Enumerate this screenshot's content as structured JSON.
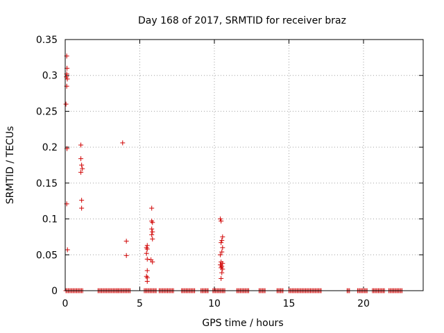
{
  "chart_data": {
    "type": "scatter",
    "title": "Day 168 of 2017, SRMTID for receiver braz",
    "xlabel": "GPS time / hours",
    "ylabel": "SRMTID / TECUs",
    "xlim": [
      0,
      24
    ],
    "ylim": [
      0,
      0.35
    ],
    "xticks": [
      0,
      5,
      10,
      15,
      20
    ],
    "xtick_labels": [
      "0",
      "5",
      "10",
      "15",
      "20"
    ],
    "yticks": [
      0,
      0.05,
      0.1,
      0.15,
      0.2,
      0.25,
      0.3,
      0.35
    ],
    "ytick_labels": [
      "0",
      "0.05",
      "0.1",
      "0.15",
      "0.2",
      "0.25",
      "0.3",
      "0.35"
    ],
    "grid": true,
    "marker": "+",
    "color": "#d00000",
    "series": [
      {
        "name": "SRMTID",
        "points": [
          [
            0.1,
            0.327
          ],
          [
            0.12,
            0.31
          ],
          [
            0.1,
            0.302
          ],
          [
            0.08,
            0.298
          ],
          [
            0.14,
            0.295
          ],
          [
            0.1,
            0.285
          ],
          [
            0.05,
            0.26
          ],
          [
            0.12,
            0.198
          ],
          [
            0.1,
            0.121
          ],
          [
            0.15,
            0.057
          ],
          [
            1.05,
            0.203
          ],
          [
            1.05,
            0.184
          ],
          [
            1.1,
            0.175
          ],
          [
            1.15,
            0.17
          ],
          [
            1.05,
            0.165
          ],
          [
            1.1,
            0.126
          ],
          [
            1.1,
            0.115
          ],
          [
            3.85,
            0.206
          ],
          [
            4.1,
            0.069
          ],
          [
            4.1,
            0.049
          ],
          [
            5.5,
            0.063
          ],
          [
            5.45,
            0.06
          ],
          [
            5.5,
            0.058
          ],
          [
            5.45,
            0.052
          ],
          [
            5.5,
            0.044
          ],
          [
            5.5,
            0.028
          ],
          [
            5.45,
            0.02
          ],
          [
            5.5,
            0.018
          ],
          [
            5.5,
            0.013
          ],
          [
            5.8,
            0.115
          ],
          [
            5.8,
            0.097
          ],
          [
            5.85,
            0.095
          ],
          [
            5.8,
            0.086
          ],
          [
            5.85,
            0.082
          ],
          [
            5.8,
            0.078
          ],
          [
            5.85,
            0.072
          ],
          [
            5.75,
            0.043
          ],
          [
            5.85,
            0.04
          ],
          [
            10.4,
            0.1
          ],
          [
            10.45,
            0.097
          ],
          [
            10.55,
            0.075
          ],
          [
            10.5,
            0.07
          ],
          [
            10.45,
            0.067
          ],
          [
            10.55,
            0.06
          ],
          [
            10.5,
            0.054
          ],
          [
            10.4,
            0.05
          ],
          [
            10.45,
            0.04
          ],
          [
            10.55,
            0.038
          ],
          [
            10.4,
            0.036
          ],
          [
            10.5,
            0.034
          ],
          [
            10.45,
            0.032
          ],
          [
            10.55,
            0.03
          ],
          [
            10.5,
            0.025
          ],
          [
            10.45,
            0.017
          ]
        ],
        "zero_ranges": [
          [
            0.05,
            1.2
          ],
          [
            2.2,
            3.5
          ],
          [
            3.55,
            4.35
          ],
          [
            5.3,
            6.1
          ],
          [
            6.3,
            7.3
          ],
          [
            7.8,
            8.7
          ],
          [
            9.1,
            9.6
          ],
          [
            9.9,
            10.7
          ],
          [
            11.5,
            12.3
          ],
          [
            13.0,
            13.4
          ],
          [
            14.2,
            14.6
          ],
          [
            15.0,
            17.2
          ],
          [
            18.9,
            19.1
          ],
          [
            19.6,
            20.3
          ],
          [
            20.6,
            21.4
          ],
          [
            21.7,
            22.6
          ]
        ],
        "zero_step": 0.08
      }
    ]
  }
}
